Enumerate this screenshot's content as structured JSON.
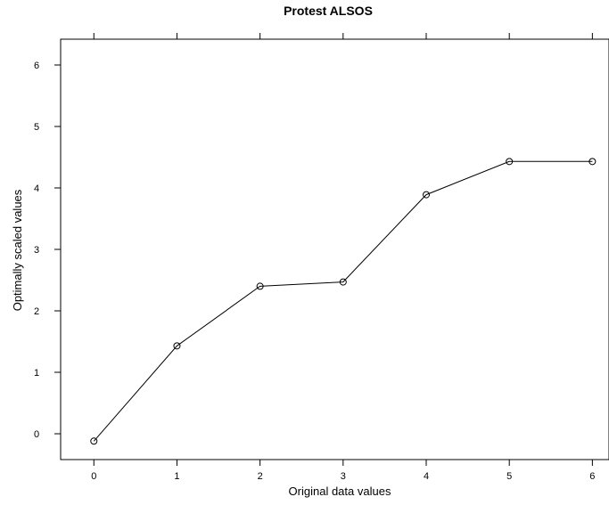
{
  "chart_data": {
    "type": "line",
    "title": "Protest ALSOS",
    "xlabel": "Original data values",
    "ylabel": "Optimally scaled values",
    "xlim": [
      -0.4,
      6.2
    ],
    "ylim": [
      -0.42,
      6.42
    ],
    "xticks": [
      0,
      1,
      2,
      3,
      4,
      5,
      6
    ],
    "yticks": [
      0,
      1,
      2,
      3,
      4,
      5,
      6
    ],
    "x": [
      0,
      1,
      2,
      3,
      4,
      5,
      6
    ],
    "y": [
      -0.12,
      1.43,
      2.4,
      2.47,
      3.89,
      4.43,
      4.43
    ],
    "markers": "open-circle",
    "grid": false,
    "top_axis_ticks": true
  }
}
